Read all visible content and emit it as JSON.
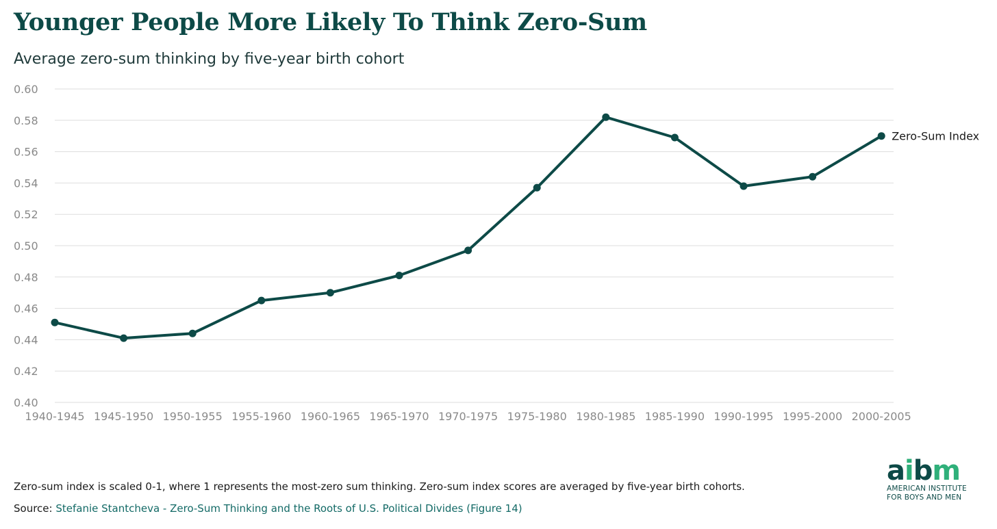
{
  "header": {
    "title": "Younger People More Likely To Think Zero-Sum",
    "subtitle": "Average zero-sum thinking by five-year birth cohort"
  },
  "chart_data": {
    "type": "line",
    "title": "Younger People More Likely To Think Zero-Sum",
    "subtitle": "Average zero-sum thinking by five-year birth cohort",
    "xlabel": "",
    "ylabel": "",
    "categories": [
      "1940-1945",
      "1945-1950",
      "1950-1955",
      "1955-1960",
      "1960-1965",
      "1965-1970",
      "1970-1975",
      "1975-1980",
      "1980-1985",
      "1985-1990",
      "1990-1995",
      "1995-2000",
      "2000-2005"
    ],
    "series": [
      {
        "name": "Zero-Sum Index",
        "values": [
          0.451,
          0.441,
          0.444,
          0.465,
          0.47,
          0.481,
          0.497,
          0.537,
          0.582,
          0.569,
          0.538,
          0.544,
          0.57
        ]
      }
    ],
    "ylim": [
      0.4,
      0.6
    ],
    "yticks": [
      "0.40",
      "0.42",
      "0.44",
      "0.46",
      "0.48",
      "0.50",
      "0.52",
      "0.54",
      "0.56",
      "0.58",
      "0.60"
    ],
    "grid": true,
    "legend": "end-of-line label",
    "line_color": "#0d4a47",
    "grid_color": "#dddddd",
    "tick_color": "#8a8a8a"
  },
  "footer": {
    "note": "Zero-sum index is scaled 0-1, where 1 represents the most-zero sum thinking. Zero-sum index scores are averaged by five-year birth cohorts.",
    "source_prefix": "Source: ",
    "source_text": "Stefanie Stantcheva - Zero-Sum Thinking and the Roots of U.S. Political Divides (Figure 14)"
  },
  "logo": {
    "word_a": "a",
    "word_i": "i",
    "word_b": "b",
    "word_m": "m",
    "tagline_1": "AMERICAN INSTITUTE",
    "tagline_2": "FOR BOYS AND MEN"
  },
  "colors": {
    "brand_dark": "#0d4a47",
    "brand_green": "#2fb07a",
    "link": "#136a66"
  }
}
